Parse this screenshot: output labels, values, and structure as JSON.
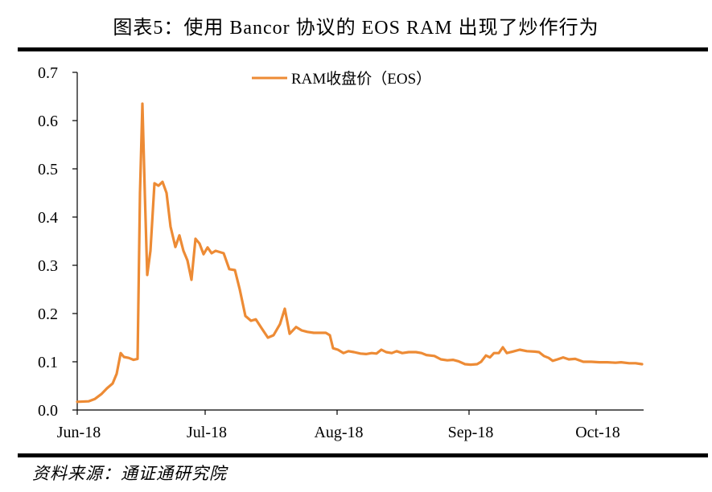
{
  "title": "图表5：使用 Bancor 协议的 EOS RAM 出现了炒作行为",
  "source": "资料来源：通证通研究院",
  "colors": {
    "line": "#ED8B35",
    "axis": "#000000",
    "rule": "#000000"
  },
  "chart_data": {
    "type": "line",
    "title": "图表5：使用 Bancor 协议的 EOS RAM 出现了炒作行为",
    "xlabel": "",
    "ylabel": "",
    "ylim": [
      0.0,
      0.7
    ],
    "yticks": [
      "0.0",
      "0.1",
      "0.2",
      "0.3",
      "0.4",
      "0.5",
      "0.6",
      "0.7"
    ],
    "xticks": [
      "Jun-18",
      "Jul-18",
      "Aug-18",
      "Sep-18",
      "Oct-18"
    ],
    "grid": false,
    "legend_position": "top-center",
    "series": [
      {
        "name": "RAM收盘价（EOS）",
        "color": "#ED8B35",
        "x": [
          "Jun-18",
          "",
          "",
          "",
          "",
          "",
          "",
          "",
          "",
          "",
          "",
          "",
          "",
          "",
          "",
          "Jul-18",
          "",
          "",
          "",
          "",
          "",
          "",
          "",
          "",
          "",
          "",
          "",
          "",
          "",
          "",
          "",
          "Aug-18",
          "",
          "",
          "",
          "",
          "",
          "",
          "",
          "",
          "",
          "",
          "",
          "",
          "",
          "",
          "",
          "Sep-18",
          "",
          "",
          "",
          "",
          "",
          "",
          "",
          "",
          "",
          "",
          "",
          "",
          "",
          "Oct-18",
          "",
          "",
          "",
          ""
        ],
        "points": [
          [
            96,
            0.017
          ],
          [
            110,
            0.018
          ],
          [
            118,
            0.023
          ],
          [
            126,
            0.033
          ],
          [
            133,
            0.045
          ],
          [
            140,
            0.055
          ],
          [
            145,
            0.075
          ],
          [
            150,
            0.118
          ],
          [
            154,
            0.11
          ],
          [
            160,
            0.108
          ],
          [
            166,
            0.104
          ],
          [
            171,
            0.106
          ],
          [
            174,
            0.45
          ],
          [
            177,
            0.635
          ],
          [
            180,
            0.45
          ],
          [
            183,
            0.28
          ],
          [
            187,
            0.33
          ],
          [
            192,
            0.47
          ],
          [
            197,
            0.465
          ],
          [
            202,
            0.473
          ],
          [
            207,
            0.45
          ],
          [
            212,
            0.38
          ],
          [
            218,
            0.338
          ],
          [
            223,
            0.362
          ],
          [
            228,
            0.33
          ],
          [
            233,
            0.31
          ],
          [
            238,
            0.27
          ],
          [
            243,
            0.355
          ],
          [
            248,
            0.345
          ],
          [
            253,
            0.323
          ],
          [
            258,
            0.337
          ],
          [
            263,
            0.325
          ],
          [
            268,
            0.33
          ],
          [
            278,
            0.325
          ],
          [
            285,
            0.292
          ],
          [
            292,
            0.29
          ],
          [
            298,
            0.25
          ],
          [
            305,
            0.195
          ],
          [
            312,
            0.185
          ],
          [
            318,
            0.188
          ],
          [
            325,
            0.17
          ],
          [
            333,
            0.15
          ],
          [
            340,
            0.155
          ],
          [
            348,
            0.178
          ],
          [
            354,
            0.21
          ],
          [
            360,
            0.158
          ],
          [
            368,
            0.172
          ],
          [
            375,
            0.165
          ],
          [
            382,
            0.162
          ],
          [
            390,
            0.16
          ],
          [
            397,
            0.16
          ],
          [
            405,
            0.16
          ],
          [
            410,
            0.155
          ],
          [
            414,
            0.128
          ],
          [
            420,
            0.125
          ],
          [
            427,
            0.118
          ],
          [
            433,
            0.122
          ],
          [
            440,
            0.12
          ],
          [
            448,
            0.117
          ],
          [
            455,
            0.116
          ],
          [
            462,
            0.118
          ],
          [
            468,
            0.117
          ],
          [
            474,
            0.125
          ],
          [
            480,
            0.12
          ],
          [
            487,
            0.118
          ],
          [
            493,
            0.122
          ],
          [
            500,
            0.118
          ],
          [
            508,
            0.12
          ],
          [
            517,
            0.12
          ],
          [
            524,
            0.118
          ],
          [
            530,
            0.114
          ],
          [
            540,
            0.112
          ],
          [
            548,
            0.105
          ],
          [
            556,
            0.103
          ],
          [
            563,
            0.104
          ],
          [
            570,
            0.101
          ],
          [
            578,
            0.095
          ],
          [
            585,
            0.094
          ],
          [
            593,
            0.095
          ],
          [
            598,
            0.1
          ],
          [
            604,
            0.113
          ],
          [
            609,
            0.109
          ],
          [
            614,
            0.118
          ],
          [
            620,
            0.118
          ],
          [
            625,
            0.13
          ],
          [
            630,
            0.118
          ],
          [
            637,
            0.121
          ],
          [
            646,
            0.125
          ],
          [
            655,
            0.122
          ],
          [
            665,
            0.121
          ],
          [
            670,
            0.12
          ],
          [
            676,
            0.112
          ],
          [
            682,
            0.108
          ],
          [
            687,
            0.102
          ],
          [
            693,
            0.105
          ],
          [
            700,
            0.109
          ],
          [
            707,
            0.105
          ],
          [
            715,
            0.106
          ],
          [
            725,
            0.1
          ],
          [
            735,
            0.1
          ],
          [
            745,
            0.099
          ],
          [
            755,
            0.099
          ],
          [
            765,
            0.098
          ],
          [
            772,
            0.099
          ],
          [
            782,
            0.097
          ],
          [
            790,
            0.097
          ],
          [
            798,
            0.095
          ]
        ]
      }
    ]
  },
  "legend": {
    "label": "RAM收盘价（EOS）"
  }
}
